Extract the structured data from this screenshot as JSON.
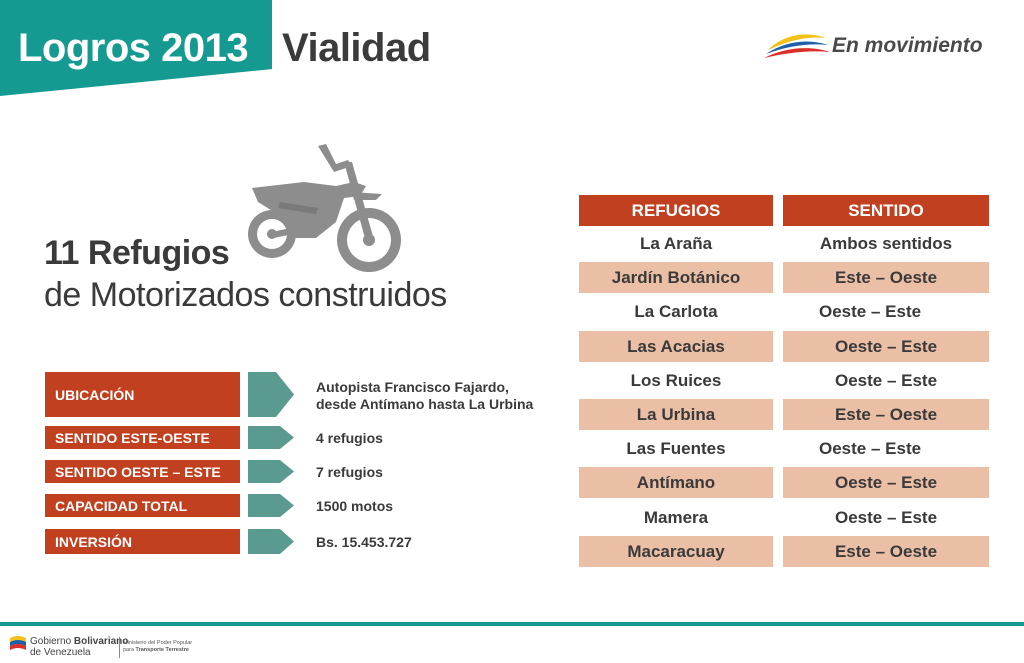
{
  "header": {
    "title": "Logros 2013",
    "section": "Vialidad",
    "logo_text": "En movimiento"
  },
  "headline": {
    "count_line": "11 Refugios",
    "subtitle": "de Motorizados construidos"
  },
  "info": [
    {
      "label": "UBICACIÓN",
      "value_line1": "Autopista Francisco Fajardo,",
      "value_line2": "desde Antímano hasta La Urbina"
    },
    {
      "label": "SENTIDO ESTE-OESTE",
      "value_line1": "4 refugios"
    },
    {
      "label": "SENTIDO OESTE – ESTE",
      "value_line1": "7 refugios"
    },
    {
      "label": "CAPACIDAD TOTAL",
      "value_line1": "1500 motos"
    },
    {
      "label": "INVERSIÓN",
      "value_line1": "Bs. 15.453.727"
    }
  ],
  "table": {
    "headers": [
      "REFUGIOS",
      "SENTIDO"
    ],
    "rows": [
      [
        "La Araña",
        "Ambos sentidos"
      ],
      [
        "Jardín Botánico",
        "Este – Oeste"
      ],
      [
        "La Carlota",
        "Oeste – Este"
      ],
      [
        "Las Acacias",
        "Oeste – Este"
      ],
      [
        "Los Ruices",
        "Oeste – Este"
      ],
      [
        "La Urbina",
        "Este – Oeste"
      ],
      [
        "Las Fuentes",
        "Oeste – Este"
      ],
      [
        "Antímano",
        "Oeste – Este"
      ],
      [
        "Mamera",
        "Oeste – Este"
      ],
      [
        "Macaracuay",
        "Este – Oeste"
      ]
    ]
  },
  "footer": {
    "gov_line1_pre": "Gobierno ",
    "gov_line1_bold": "Bolivariano",
    "gov_line2": "de Venezuela",
    "ministry_line1": "Ministerio del Poder Popular",
    "ministry_line2_pre": "para ",
    "ministry_line2_bold": "Transporte Terrestre"
  },
  "colors": {
    "teal": "#159a91",
    "rust": "#c0401f",
    "peach": "#ebbfa5",
    "arrow": "#5b9a8e",
    "text": "#3a3a3a"
  },
  "icons": [
    "motorcycle-icon",
    "arrow-right-icon",
    "en-movimiento-logo",
    "venezuela-flag-icon"
  ]
}
